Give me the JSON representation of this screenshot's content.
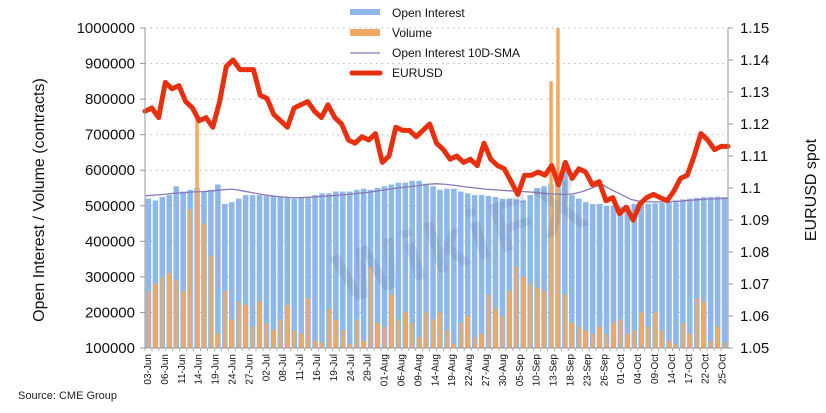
{
  "source_label": "Source: CME Group",
  "watermark": "WikiFX",
  "chart_data": {
    "type": "bar",
    "title": "",
    "xlabel": "",
    "ylabel": "Open Interest / Volume (contracts)",
    "y2label": "EURUSD spot",
    "ylim": [
      100000,
      1000000
    ],
    "y2lim": [
      1.05,
      1.15
    ],
    "yticks": [
      "100000",
      "200000",
      "300000",
      "400000",
      "500000",
      "600000",
      "700000",
      "800000",
      "900000",
      "1000000"
    ],
    "y2ticks": [
      "1.05",
      "1.06",
      "1.07",
      "1.08",
      "1.09",
      "1.1",
      "1.11",
      "1.12",
      "1.13",
      "1.14",
      "1.15"
    ],
    "grid": "horizontal-dotted",
    "legend_position": "top-center",
    "legend": [
      {
        "name": "Open Interest",
        "type": "bar",
        "color": "#8fb8ea"
      },
      {
        "name": "Volume",
        "type": "bar",
        "color": "#f0a963"
      },
      {
        "name": "Open Interest 10D-SMA",
        "type": "line",
        "color": "#8a78b8"
      },
      {
        "name": "EURUSD",
        "type": "line",
        "color": "#e8300f"
      }
    ],
    "x_tick_labels": [
      "03-Jun",
      "06-Jun",
      "11-Jun",
      "14-Jun",
      "19-Jun",
      "24-Jun",
      "27-Jun",
      "02-Jul",
      "08-Jul",
      "11-Jul",
      "16-Jul",
      "19-Jul",
      "24-Jul",
      "29-Jul",
      "01-Aug",
      "06-Aug",
      "09-Aug",
      "14-Aug",
      "19-Aug",
      "22-Aug",
      "27-Aug",
      "30-Aug",
      "05-Sep",
      "10-Sep",
      "13-Sep",
      "18-Sep",
      "23-Sep",
      "26-Sep",
      "01-Oct",
      "04-Oct",
      "09-Oct",
      "14-Oct",
      "17-Oct",
      "22-Oct",
      "25-Oct"
    ],
    "series": [
      {
        "name": "Open Interest",
        "axis": "left",
        "values": [
          520000,
          515000,
          525000,
          530000,
          555000,
          540000,
          545000,
          550000,
          540000,
          545000,
          560000,
          505000,
          510000,
          520000,
          530000,
          530000,
          530000,
          528000,
          528000,
          525000,
          525000,
          520000,
          522000,
          525000,
          530000,
          535000,
          535000,
          540000,
          540000,
          540000,
          545000,
          548000,
          545000,
          550000,
          555000,
          560000,
          565000,
          565000,
          570000,
          570000,
          562000,
          555000,
          545000,
          548000,
          548000,
          540000,
          535000,
          530000,
          530000,
          528000,
          525000,
          520000,
          520000,
          518000,
          515000,
          530000,
          550000,
          555000,
          560000,
          590000,
          620000,
          530000,
          520000,
          510000,
          505000,
          505000,
          500000,
          500000,
          498000,
          497000,
          505000,
          505000,
          506000,
          507000,
          508000,
          510000,
          515000,
          518000,
          520000,
          522000,
          524000,
          525000,
          526000,
          524000
        ],
        "color": "#8fb8ea"
      },
      {
        "name": "Volume",
        "axis": "left",
        "values": [
          260000,
          280000,
          300000,
          310000,
          290000,
          260000,
          490000,
          750000,
          450000,
          360000,
          140000,
          260000,
          180000,
          230000,
          220000,
          160000,
          230000,
          170000,
          150000,
          180000,
          220000,
          150000,
          140000,
          240000,
          120000,
          115000,
          210000,
          180000,
          150000,
          110000,
          180000,
          120000,
          330000,
          170000,
          160000,
          250000,
          180000,
          200000,
          170000,
          130000,
          200000,
          180000,
          200000,
          150000,
          110000,
          170000,
          190000,
          130000,
          140000,
          250000,
          210000,
          190000,
          260000,
          330000,
          300000,
          280000,
          270000,
          260000,
          850000,
          1000000,
          250000,
          170000,
          160000,
          150000,
          140000,
          160000,
          140000,
          170000,
          180000,
          140000,
          150000,
          200000,
          160000,
          200000,
          150000,
          120000,
          110000,
          170000,
          140000,
          240000,
          230000,
          120000,
          160000,
          115000
        ],
        "color": "#f0a963"
      },
      {
        "name": "Open Interest 10D-SMA",
        "axis": "left",
        "values": [
          528000,
          530000,
          532000,
          535000,
          537000,
          539000,
          540000,
          542000,
          545000,
          547000,
          542000,
          537000,
          532000,
          528000,
          525000,
          523000,
          523000,
          524000,
          526000,
          528000,
          530000,
          532000,
          535000,
          538000,
          542000,
          546000,
          550000,
          553000,
          556000,
          560000,
          562000,
          560000,
          557000,
          553000,
          550000,
          547000,
          545000,
          543000,
          541000,
          540000,
          538000,
          535000,
          533000,
          532000,
          533000,
          540000,
          550000,
          560000,
          545000,
          532000,
          518000,
          512000,
          511000,
          511000,
          512000,
          513000,
          515000,
          517000,
          519000,
          520000,
          522000
        ],
        "color": "#8a78b8"
      },
      {
        "name": "EURUSD",
        "axis": "right",
        "values": [
          1.124,
          1.125,
          1.122,
          1.133,
          1.131,
          1.132,
          1.127,
          1.125,
          1.121,
          1.122,
          1.119,
          1.127,
          1.138,
          1.14,
          1.137,
          1.137,
          1.137,
          1.129,
          1.128,
          1.123,
          1.121,
          1.119,
          1.125,
          1.126,
          1.127,
          1.124,
          1.122,
          1.126,
          1.122,
          1.12,
          1.115,
          1.114,
          1.116,
          1.115,
          1.117,
          1.108,
          1.11,
          1.119,
          1.118,
          1.118,
          1.116,
          1.118,
          1.12,
          1.114,
          1.112,
          1.109,
          1.11,
          1.108,
          1.109,
          1.107,
          1.114,
          1.109,
          1.107,
          1.106,
          1.102,
          1.098,
          1.104,
          1.104,
          1.105,
          1.104,
          1.107,
          1.101,
          1.108,
          1.103,
          1.106,
          1.105,
          1.101,
          1.102,
          1.096,
          1.097,
          1.092,
          1.094,
          1.09,
          1.095,
          1.097,
          1.098,
          1.097,
          1.096,
          1.099,
          1.103,
          1.104,
          1.11,
          1.117,
          1.115,
          1.112,
          1.113,
          1.113
        ],
        "color": "#e8300f"
      }
    ]
  }
}
